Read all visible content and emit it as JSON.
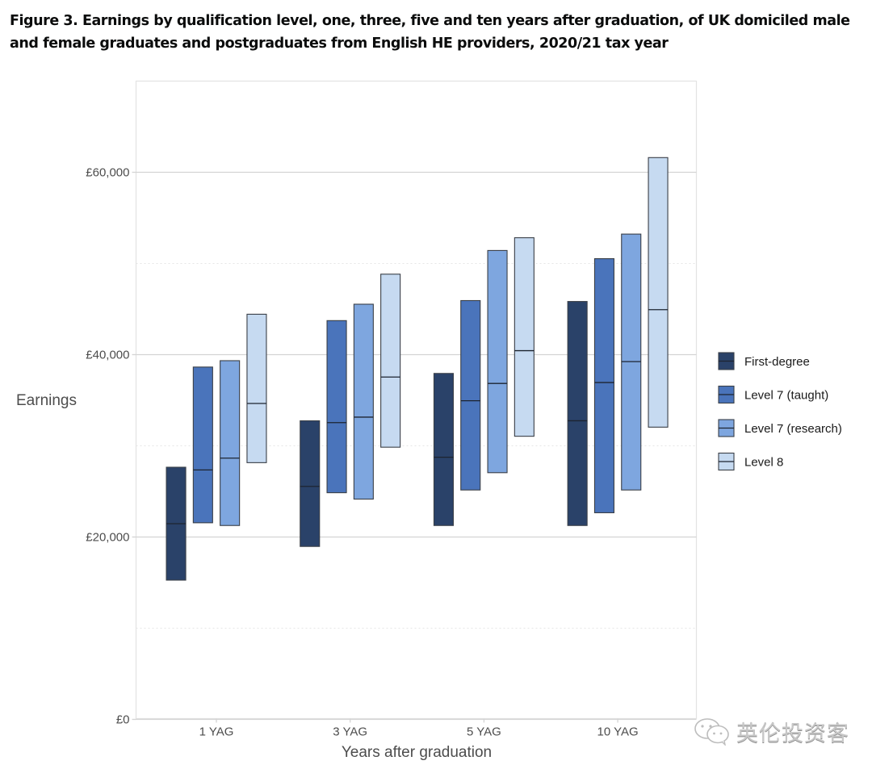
{
  "figure": {
    "title": "Figure 3. Earnings by qualification level, one, three, five and ten years after graduation, of UK domiciled male and female graduates and postgraduates from English HE providers, 2020/21 tax year"
  },
  "watermark": {
    "icon": "wechat-icon",
    "text": "英伦投资客"
  },
  "chart_data": {
    "type": "box",
    "title": "Figure 3. Earnings by qualification level, one, three, five and ten years after graduation, of UK domiciled male and female graduates and postgraduates from English HE providers, 2020/21 tax year",
    "xlabel": "Years after graduation",
    "ylabel": "Earnings",
    "categories": [
      "1 YAG",
      "3 YAG",
      "5 YAG",
      "10 YAG"
    ],
    "ylim": [
      0,
      70000
    ],
    "yticks": [
      0,
      20000,
      40000,
      60000
    ],
    "ytick_labels": [
      "£0",
      "£20,000",
      "£40,000",
      "£60,000"
    ],
    "minor_gridlines": [
      10000,
      30000,
      50000
    ],
    "grid": true,
    "legend_position": "right",
    "value_description": "Each bar spans lower quartile to upper quartile; the inner line marks the median",
    "series": [
      {
        "name": "First-degree",
        "color": "#2a4269",
        "lower_quartile": [
          15200,
          18900,
          21200,
          21200
        ],
        "median": [
          21400,
          25500,
          28700,
          32700
        ],
        "upper_quartile": [
          27600,
          32700,
          37900,
          45800
        ]
      },
      {
        "name": "Level 7 (taught)",
        "color": "#4a74bb",
        "lower_quartile": [
          21500,
          24800,
          25100,
          22600
        ],
        "median": [
          27300,
          32500,
          34900,
          36900
        ],
        "upper_quartile": [
          38600,
          43700,
          45900,
          50500
        ]
      },
      {
        "name": "Level 7 (research)",
        "color": "#7ea6df",
        "lower_quartile": [
          21200,
          24100,
          27000,
          25100
        ],
        "median": [
          28600,
          33100,
          36800,
          39200
        ],
        "upper_quartile": [
          39300,
          45500,
          51400,
          53200
        ]
      },
      {
        "name": "Level 8",
        "color": "#c6daf1",
        "lower_quartile": [
          28100,
          29800,
          31000,
          32000
        ],
        "median": [
          34600,
          37500,
          40400,
          44900
        ],
        "upper_quartile": [
          44400,
          48800,
          52800,
          61600
        ]
      }
    ]
  }
}
